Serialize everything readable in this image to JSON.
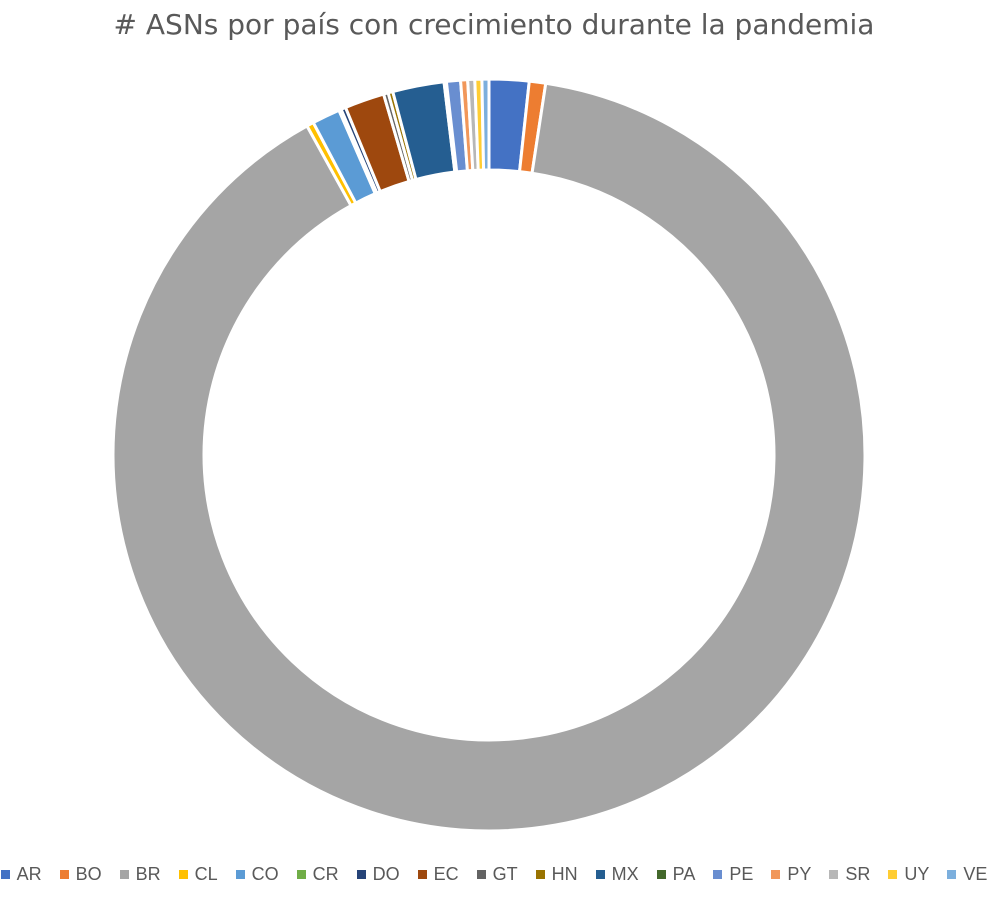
{
  "chart_data": {
    "type": "pie",
    "style": "donut",
    "title": "# ASNs por país con crecimiento durante la pandemia",
    "legend_position": "bottom",
    "categories": [
      "AR",
      "BO",
      "BR",
      "CL",
      "CO",
      "CR",
      "DO",
      "EC",
      "GT",
      "HN",
      "MX",
      "PA",
      "PE",
      "PY",
      "SR",
      "UY",
      "VE"
    ],
    "values": [
      1.7,
      0.7,
      89.1,
      0.3,
      1.2,
      0.1,
      0.2,
      1.7,
      0.2,
      0.2,
      2.2,
      0.1,
      0.6,
      0.3,
      0.3,
      0.3,
      0.3
    ],
    "colors": [
      "#4472C4",
      "#ED7D31",
      "#A5A5A5",
      "#FFC000",
      "#5B9BD5",
      "#70AD47",
      "#264478",
      "#9E480E",
      "#636363",
      "#997300",
      "#255E91",
      "#43682B",
      "#698ED0",
      "#F1975A",
      "#B7B7B7",
      "#FFCD33",
      "#7CAFDD"
    ],
    "units": "percent"
  }
}
